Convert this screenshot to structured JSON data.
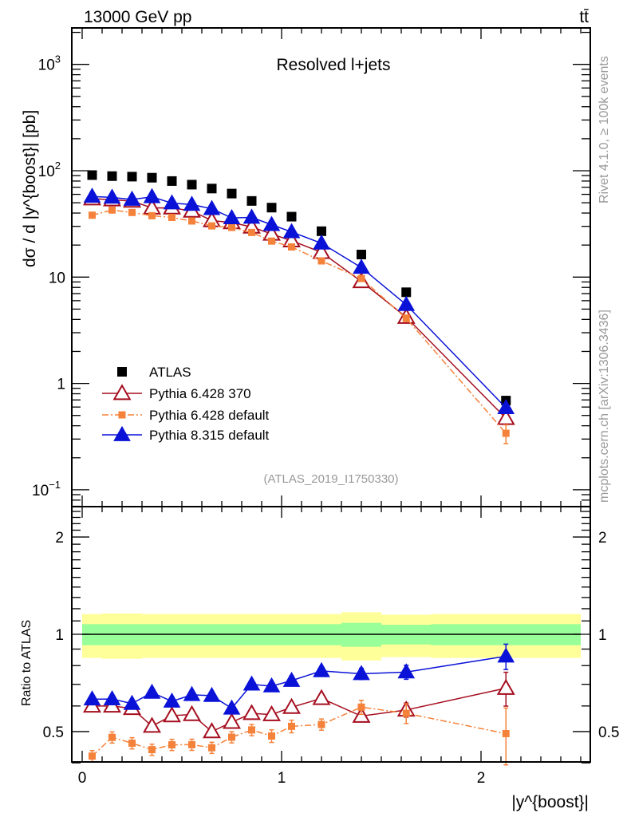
{
  "header": {
    "energy_label": "13000 GeV pp",
    "process_label": "tt̄",
    "plot_title": "Resolved l+jets",
    "analysis_id": "(ATLAS_2019_I1750330)",
    "side_note_top": "Rivet 4.1.0, ≥ 100k events",
    "side_note_bottom": "mcplots.cern.ch [arXiv:1306.3436]"
  },
  "chart_data": {
    "type": "scatter",
    "title": "Resolved l+jets",
    "xlabel": "|y^{boost}|",
    "ylabel": "dσ / d |y^{boost}| [pb]",
    "ratio_ylabel": "Ratio to ATLAS",
    "xlim": [
      -0.05,
      2.55
    ],
    "ylim": [
      0.069,
      2200
    ],
    "yscale": "log",
    "ratio_ylim": [
      0.4,
      2.48
    ],
    "ratio_yscale": "log",
    "x_ticks": [
      "0",
      "1",
      "2"
    ],
    "y_ticks": [
      {
        "base": "10",
        "exp": "−1",
        "v": 0.1
      },
      {
        "base": "1",
        "exp": "",
        "v": 1
      },
      {
        "base": "10",
        "exp": "",
        "v": 10
      },
      {
        "base": "10",
        "exp": "2",
        "v": 100
      },
      {
        "base": "10",
        "exp": "3",
        "v": 1000
      }
    ],
    "ratio_ticks": [
      {
        "label": "0.5",
        "v": 0.5
      },
      {
        "label": "1",
        "v": 1
      },
      {
        "label": "2",
        "v": 2
      }
    ],
    "bin_edges": [
      0,
      0.1,
      0.2,
      0.3,
      0.4,
      0.5,
      0.6,
      0.7,
      0.8,
      0.9,
      1.0,
      1.1,
      1.3,
      1.5,
      1.75,
      2.5
    ],
    "x": [
      0.05,
      0.15,
      0.25,
      0.35,
      0.45,
      0.55,
      0.65,
      0.75,
      0.85,
      0.95,
      1.05,
      1.2,
      1.4,
      1.625,
      2.125
    ],
    "reference": {
      "name": "ATLAS",
      "y": [
        91,
        89,
        88,
        86,
        80,
        74,
        68,
        61,
        52,
        45,
        37,
        27,
        16.3,
        7.2,
        0.69
      ],
      "stat_rel_err": [
        0.075,
        0.075,
        0.075,
        0.075,
        0.075,
        0.075,
        0.075,
        0.075,
        0.075,
        0.075,
        0.075,
        0.075,
        0.085,
        0.07,
        0.075
      ],
      "total_rel_err": [
        0.155,
        0.16,
        0.16,
        0.155,
        0.155,
        0.155,
        0.155,
        0.155,
        0.155,
        0.155,
        0.155,
        0.155,
        0.17,
        0.15,
        0.155
      ]
    },
    "series": [
      {
        "name": "Pythia 6.428 370",
        "color": "#a50e1f",
        "marker": "open-triangle",
        "linestyle": "solid",
        "y": [
          54.6,
          53.4,
          51.9,
          44.7,
          44.8,
          41.8,
          34.0,
          32.6,
          29.6,
          25.4,
          22.0,
          17.1,
          9.1,
          4.2,
          0.47
        ],
        "rel_err": [
          0.03,
          0.03,
          0.03,
          0.03,
          0.03,
          0.03,
          0.03,
          0.03,
          0.03,
          0.03,
          0.035,
          0.03,
          0.04,
          0.05,
          0.12
        ]
      },
      {
        "name": "Pythia 6.428 default",
        "color": "#f5823a",
        "marker": "square",
        "linestyle": "dashdot",
        "y": [
          38.2,
          42.7,
          40.5,
          37.8,
          36.4,
          33.7,
          30.3,
          29.3,
          26.3,
          21.8,
          19.2,
          14.2,
          9.7,
          4.1,
          0.34
        ],
        "rel_err": [
          0.04,
          0.04,
          0.04,
          0.04,
          0.04,
          0.04,
          0.04,
          0.04,
          0.04,
          0.045,
          0.045,
          0.04,
          0.05,
          0.07,
          0.2
        ]
      },
      {
        "name": "Pythia 8.315 default",
        "color": "#0a12d8",
        "marker": "filled-triangle",
        "linestyle": "solid",
        "y": [
          57.3,
          56.1,
          53.7,
          56.8,
          49.6,
          48.1,
          43.9,
          36.0,
          36.4,
          31.1,
          26.6,
          20.8,
          12.3,
          5.5,
          0.59
        ],
        "rel_err": [
          0.03,
          0.03,
          0.03,
          0.03,
          0.03,
          0.03,
          0.03,
          0.03,
          0.03,
          0.03,
          0.035,
          0.03,
          0.04,
          0.05,
          0.09
        ]
      }
    ],
    "band_colors": {
      "stat": "#99ff99",
      "total": "#ffff99"
    },
    "grid": false,
    "legend_position": "bottom-left"
  }
}
